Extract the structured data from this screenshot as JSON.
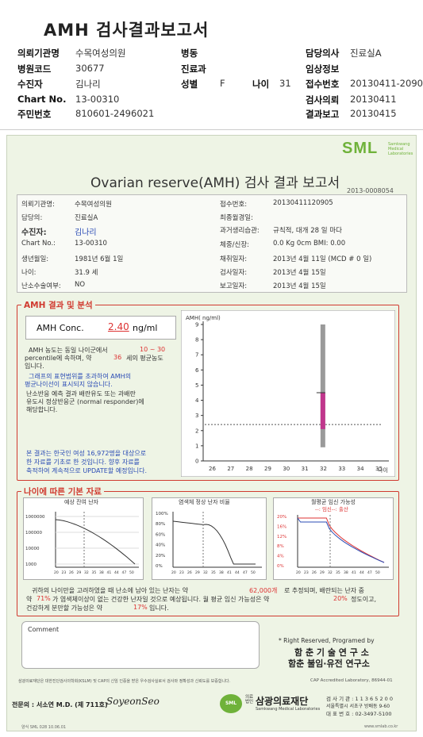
{
  "header": {
    "title": "AMH 검사결과보고서",
    "rows": [
      [
        {
          "l": "의뢰기관명",
          "v": "수목여성의원"
        },
        {
          "l": "병동",
          "v": ""
        },
        {
          "l": "담당의사",
          "v": "진료실A"
        }
      ],
      [
        {
          "l": "병원코드",
          "v": "30677"
        },
        {
          "l": "진료과",
          "v": ""
        },
        {
          "l": "임상정보",
          "v": ""
        }
      ],
      [
        {
          "l": "수진자",
          "v": "김나리"
        },
        {
          "l": "성별",
          "v": "F"
        },
        {
          "l": "나이",
          "v": "31"
        },
        {
          "l": "접수번호",
          "v": "20130411-2090"
        }
      ],
      [
        {
          "l": "Chart No.",
          "v": "13-00310"
        },
        {
          "l": "검사의뢰",
          "v": "20130411"
        }
      ],
      [
        {
          "l": "주민번호",
          "v": "810601-2496021"
        },
        {
          "l": "결과보고",
          "v": "20130415"
        }
      ]
    ]
  },
  "sheet": {
    "logo": "SML",
    "logo_sub1": "Samkwang",
    "logo_sub2": "Medical",
    "logo_sub3": "Laboratories",
    "title": "Ovarian reserve(AMH) 검사 결과 보고서",
    "doc_no": "2013-0008054",
    "info": {
      "l1": "의뢰기관명:",
      "v1": "수목여성의원",
      "l2": "담당의:",
      "v2": "진료실A",
      "l3": "수진자:",
      "v3": "김나리",
      "l4": "Chart No.:",
      "v4": "13-00310",
      "l5": "생년월일:",
      "v5": "1981년 6월 1일",
      "l6": "나이:",
      "v6": "31.9 세",
      "l7": "난소수술여부:",
      "v7": "NO",
      "r1": "접수번호:",
      "rv1": "20130411120905",
      "r2": "최종월경일:",
      "rv2": "",
      "r3": "과거생리습관:",
      "rv3": "규칙적, 대개  28 일 마다",
      "r4": "체중/신장:",
      "rv4": "0.0  Kg      0cm   BMI:    0.00",
      "r5": "채취일자:",
      "rv5": "2013년 4월 11일   (MCD # 0 일)",
      "r6": "검사일자:",
      "rv6": "2013년 4월 15일",
      "r7": "보고일자:",
      "rv7": "2013년 4월 15일"
    },
    "amh_section": "AMH 결과 및 분석",
    "amh_label": "AMH Conc.",
    "amh_value": "2.40",
    "amh_unit": "ng/ml",
    "notes": {
      "n1a": "AMH 농도는 동일 나이군에서",
      "n1b": "10 ~ 30",
      "n2a": "percentile에 속하며, 약",
      "n2b": "36",
      "n2c": "세의 평균농도",
      "n3": "입니다.",
      "n4": "그래프의 표현범위를 초과하여 AMH의",
      "n5": "평균나이선이 표시되지 않습니다.",
      "n6": "난소반응 예측 결과 배란유도 또는 과배란",
      "n7": "유도시 정상반응군 (normal responder)에",
      "n8": "해당합니다.",
      "d1": "본 결과는 한국인 여성 16,972명을 대상으로",
      "d2": "한 자료를 기초로 한 것입니다. 향후 자료를",
      "d3": "축적하여 계속적으로 UPDATE할 예정입니다."
    },
    "age_section": "나이에 따른 기본 자료",
    "mini1_title": "예상 잔여 난자",
    "mini2_title": "염색체 정상 난자 비율",
    "mini3_title": "월평균 임신 가능성",
    "mini3_legend": "--: 임신--: 출산",
    "summary1a": "귀하의 나이만을 고려하였을 때 난소에 남아 있는 난자는 약",
    "summary1b": "62,000개",
    "summary1c": "로 추정되며, 배란되는 난자 중",
    "summary2a": "약",
    "summary2b": "71%",
    "summary2c": "가 염색체이상이 없는 건강한 난자일 것으로 예상됩니다. 월 평균 임신 가능성은 약",
    "summary2d": "20%",
    "summary2e": "정도이고,",
    "summary3a": "건강하게 분만할 가능성은 약",
    "summary3b": "17%",
    "summary3c": "입니다.",
    "comment": "Comment",
    "rights": "* Right Reserved, Programed by",
    "inst1": "함 춘 기 술 연 구 소",
    "inst2": "함춘 불임·유전 연구소",
    "accred1": "삼광의료재단은 대한진단검사의학회(KSLM) 및 CAP의 신임 인증을 받은 우수검사실로서 검사와 정확성과 신뢰도를 보증합니다.",
    "accred2": "CAP  Accredited  Laboratory,  86944-01",
    "signer": "전문의 : 서소연 M.D. (제 711호)",
    "signature": "SoyeonSeo",
    "foundation_small": "의료법인",
    "foundation": "삼광의료재단",
    "foundation_en": "Samkwang Medical Laboratories",
    "addr1": "검 사 기 관 : 1 1 3 6 5 2 0 0",
    "addr2": "서울특별시 서초구 방배동 9-60",
    "addr3": "대 표 번 호 : 02-3497-5100",
    "form_code": "양식  SML  028  10.06.01",
    "web": "www.smlab.co.kr"
  }
}
